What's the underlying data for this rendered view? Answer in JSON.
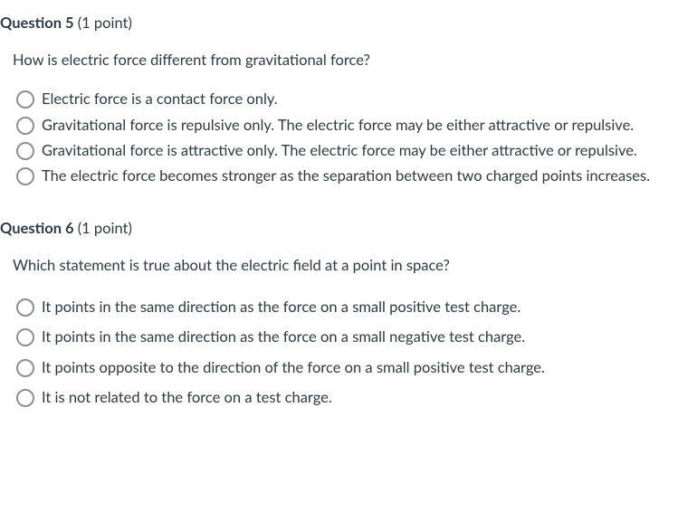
{
  "questions": [
    {
      "title_label": "Question 5",
      "points_label": "(1 point)",
      "prompt": "How is electric force different from gravitational force?",
      "answers": [
        "Electric force is a contact force only.",
        "Gravitational force is repulsive only. The electric force may be either attractive or repulsive.",
        "Gravitational force is attractive only. The electric force may be either attractive or repulsive.",
        "The electric force becomes stronger as the separation between two charged points increases."
      ]
    },
    {
      "title_label": "Question 6",
      "points_label": "(1 point)",
      "prompt": "Which statement is true about the electric field at a point in space?",
      "answers": [
        "It points in the same direction as the force on a small positive test charge.",
        "It points in the same direction as the force on a small negative test charge.",
        "It points opposite to the direction of the force on a small positive test charge.",
        "It is not related to the force on a test charge."
      ]
    }
  ],
  "colors": {
    "text": "#2d3b45",
    "radio_border": "#8c8f93",
    "background": "#ffffff"
  }
}
